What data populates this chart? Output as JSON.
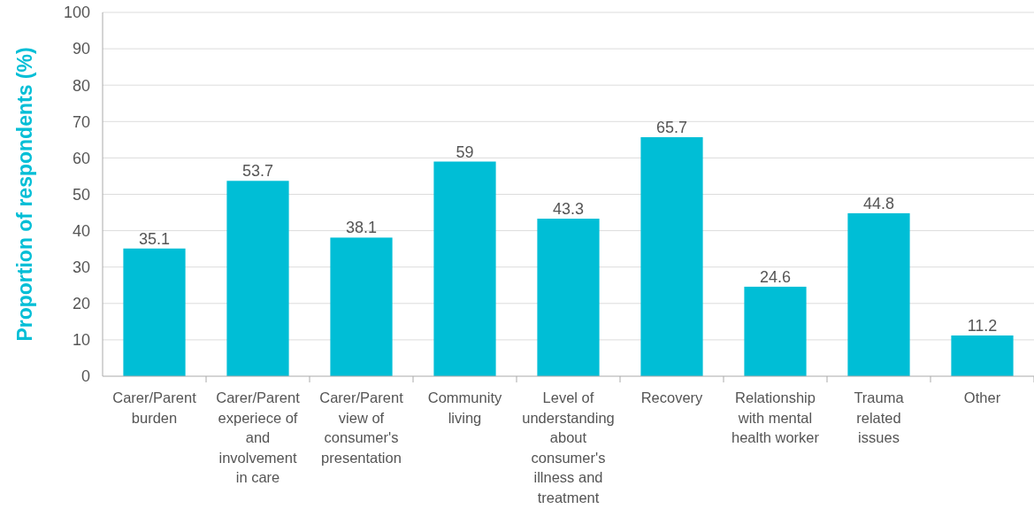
{
  "chart_data": {
    "type": "bar",
    "ylabel": "Proportion of respondents (%)",
    "categories": [
      "Carer/Parent burden",
      "Carer/Parent experiece of and involvement in care",
      "Carer/Parent view of consumer's presentation",
      "Community living",
      "Level of understanding about consumer's illness and treatment",
      "Recovery",
      "Relationship with mental health worker",
      "Trauma related issues",
      "Other"
    ],
    "values": [
      35.1,
      53.7,
      38.1,
      59,
      43.3,
      65.7,
      24.6,
      44.8,
      11.2
    ],
    "color": "#00bed6",
    "ylim": [
      0,
      100
    ],
    "yticks": [
      0,
      10,
      20,
      30,
      40,
      50,
      60,
      70,
      80,
      90,
      100
    ],
    "grid": "y",
    "data_labels": true
  }
}
